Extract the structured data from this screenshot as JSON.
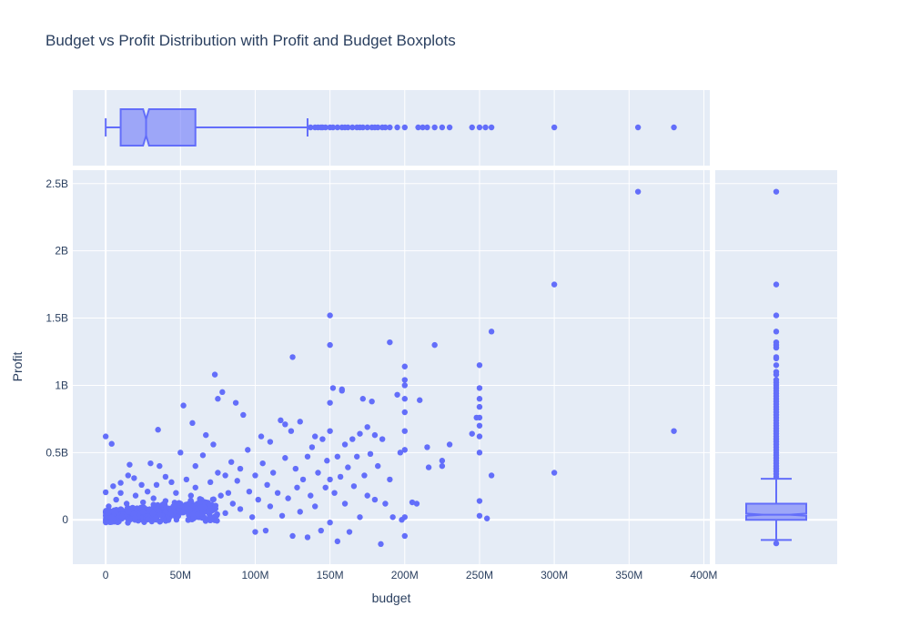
{
  "chart_data": {
    "type": "scatter",
    "title": "Budget vs Profit Distribution with Profit and Budget Boxplots",
    "xlabel": "budget",
    "ylabel": "Profit",
    "xlim": [
      -22000000,
      404000000
    ],
    "ylim": [
      -330000000,
      2600000000
    ],
    "x_ticks": [
      {
        "value": 0,
        "label": "0"
      },
      {
        "value": 50000000,
        "label": "50M"
      },
      {
        "value": 100000000,
        "label": "100M"
      },
      {
        "value": 150000000,
        "label": "150M"
      },
      {
        "value": 200000000,
        "label": "200M"
      },
      {
        "value": 250000000,
        "label": "250M"
      },
      {
        "value": 300000000,
        "label": "300M"
      },
      {
        "value": 350000000,
        "label": "350M"
      },
      {
        "value": 400000000,
        "label": "400M"
      }
    ],
    "y_ticks": [
      {
        "value": 0,
        "label": "0"
      },
      {
        "value": 500000000,
        "label": "0.5B"
      },
      {
        "value": 1000000000,
        "label": "1B"
      },
      {
        "value": 1500000000,
        "label": "1.5B"
      },
      {
        "value": 2000000000,
        "label": "2B"
      },
      {
        "value": 2500000000,
        "label": "2.5B"
      }
    ],
    "grid": true,
    "marker_color": "#636efa",
    "background_color": "#e5ecf6",
    "points": [
      {
        "x": 0,
        "y": 620000000
      },
      {
        "x": 4000000,
        "y": 565000000
      },
      {
        "x": 0,
        "y": 205000000
      },
      {
        "x": 2000000,
        "y": 100000000
      },
      {
        "x": 3000000,
        "y": 30000000
      },
      {
        "x": 5000000,
        "y": 250000000
      },
      {
        "x": 7000000,
        "y": 150000000
      },
      {
        "x": 8000000,
        "y": 60000000
      },
      {
        "x": 10000000,
        "y": 200000000
      },
      {
        "x": 10000000,
        "y": 275000000
      },
      {
        "x": 12000000,
        "y": 20000000
      },
      {
        "x": 14000000,
        "y": 120000000
      },
      {
        "x": 15000000,
        "y": 330000000
      },
      {
        "x": 16000000,
        "y": 410000000
      },
      {
        "x": 18000000,
        "y": 90000000
      },
      {
        "x": 19000000,
        "y": 310000000
      },
      {
        "x": 20000000,
        "y": 180000000
      },
      {
        "x": 22000000,
        "y": 50000000
      },
      {
        "x": 24000000,
        "y": 260000000
      },
      {
        "x": 25000000,
        "y": 130000000
      },
      {
        "x": 27000000,
        "y": 80000000
      },
      {
        "x": 28000000,
        "y": 210000000
      },
      {
        "x": 30000000,
        "y": 420000000
      },
      {
        "x": 30000000,
        "y": 30000000
      },
      {
        "x": 32000000,
        "y": 160000000
      },
      {
        "x": 34000000,
        "y": 260000000
      },
      {
        "x": 35000000,
        "y": 670000000
      },
      {
        "x": 36000000,
        "y": 400000000
      },
      {
        "x": 38000000,
        "y": 60000000
      },
      {
        "x": 40000000,
        "y": 320000000
      },
      {
        "x": 40000000,
        "y": 140000000
      },
      {
        "x": 42000000,
        "y": 20000000
      },
      {
        "x": 44000000,
        "y": 280000000
      },
      {
        "x": 45000000,
        "y": 90000000
      },
      {
        "x": 47000000,
        "y": 200000000
      },
      {
        "x": 50000000,
        "y": 500000000
      },
      {
        "x": 50000000,
        "y": 120000000
      },
      {
        "x": 52000000,
        "y": 850000000
      },
      {
        "x": 54000000,
        "y": 300000000
      },
      {
        "x": 55000000,
        "y": 60000000
      },
      {
        "x": 57000000,
        "y": 180000000
      },
      {
        "x": 58000000,
        "y": 720000000
      },
      {
        "x": 60000000,
        "y": 400000000
      },
      {
        "x": 60000000,
        "y": 240000000
      },
      {
        "x": 62000000,
        "y": 30000000
      },
      {
        "x": 64000000,
        "y": 150000000
      },
      {
        "x": 65000000,
        "y": 480000000
      },
      {
        "x": 67000000,
        "y": 630000000
      },
      {
        "x": 68000000,
        "y": 100000000
      },
      {
        "x": 70000000,
        "y": 280000000
      },
      {
        "x": 72000000,
        "y": 560000000
      },
      {
        "x": 73000000,
        "y": 1080000000
      },
      {
        "x": 75000000,
        "y": 900000000
      },
      {
        "x": 75000000,
        "y": 350000000
      },
      {
        "x": 77000000,
        "y": 180000000
      },
      {
        "x": 78000000,
        "y": 950000000
      },
      {
        "x": 80000000,
        "y": 330000000
      },
      {
        "x": 80000000,
        "y": 50000000
      },
      {
        "x": 82000000,
        "y": 200000000
      },
      {
        "x": 84000000,
        "y": 430000000
      },
      {
        "x": 85000000,
        "y": 120000000
      },
      {
        "x": 87000000,
        "y": 870000000
      },
      {
        "x": 88000000,
        "y": 290000000
      },
      {
        "x": 90000000,
        "y": 380000000
      },
      {
        "x": 90000000,
        "y": 80000000
      },
      {
        "x": 92000000,
        "y": 780000000
      },
      {
        "x": 95000000,
        "y": 520000000
      },
      {
        "x": 96000000,
        "y": 210000000
      },
      {
        "x": 98000000,
        "y": 20000000
      },
      {
        "x": 100000000,
        "y": 330000000
      },
      {
        "x": 100000000,
        "y": -90000000
      },
      {
        "x": 102000000,
        "y": 150000000
      },
      {
        "x": 104000000,
        "y": 620000000
      },
      {
        "x": 105000000,
        "y": 420000000
      },
      {
        "x": 107000000,
        "y": -80000000
      },
      {
        "x": 108000000,
        "y": 260000000
      },
      {
        "x": 110000000,
        "y": 580000000
      },
      {
        "x": 110000000,
        "y": 100000000
      },
      {
        "x": 112000000,
        "y": 350000000
      },
      {
        "x": 115000000,
        "y": 200000000
      },
      {
        "x": 117000000,
        "y": 740000000
      },
      {
        "x": 118000000,
        "y": 30000000
      },
      {
        "x": 120000000,
        "y": 710000000
      },
      {
        "x": 120000000,
        "y": 460000000
      },
      {
        "x": 122000000,
        "y": 160000000
      },
      {
        "x": 124000000,
        "y": 660000000
      },
      {
        "x": 125000000,
        "y": 1210000000
      },
      {
        "x": 125000000,
        "y": -120000000
      },
      {
        "x": 127000000,
        "y": 380000000
      },
      {
        "x": 128000000,
        "y": 240000000
      },
      {
        "x": 130000000,
        "y": 730000000
      },
      {
        "x": 130000000,
        "y": 60000000
      },
      {
        "x": 132000000,
        "y": 300000000
      },
      {
        "x": 135000000,
        "y": 470000000
      },
      {
        "x": 135000000,
        "y": -130000000
      },
      {
        "x": 137000000,
        "y": 180000000
      },
      {
        "x": 138000000,
        "y": 540000000
      },
      {
        "x": 140000000,
        "y": 620000000
      },
      {
        "x": 140000000,
        "y": 100000000
      },
      {
        "x": 142000000,
        "y": 350000000
      },
      {
        "x": 144000000,
        "y": -80000000
      },
      {
        "x": 145000000,
        "y": 600000000
      },
      {
        "x": 147000000,
        "y": 240000000
      },
      {
        "x": 148000000,
        "y": 440000000
      },
      {
        "x": 150000000,
        "y": 1520000000
      },
      {
        "x": 150000000,
        "y": 1300000000
      },
      {
        "x": 150000000,
        "y": 870000000
      },
      {
        "x": 150000000,
        "y": 660000000
      },
      {
        "x": 150000000,
        "y": 300000000
      },
      {
        "x": 150000000,
        "y": -20000000
      },
      {
        "x": 152000000,
        "y": 980000000
      },
      {
        "x": 153000000,
        "y": 200000000
      },
      {
        "x": 155000000,
        "y": 470000000
      },
      {
        "x": 155000000,
        "y": -160000000
      },
      {
        "x": 157000000,
        "y": 320000000
      },
      {
        "x": 158000000,
        "y": 960000000
      },
      {
        "x": 158000000,
        "y": 970000000
      },
      {
        "x": 160000000,
        "y": 560000000
      },
      {
        "x": 160000000,
        "y": 120000000
      },
      {
        "x": 162000000,
        "y": 390000000
      },
      {
        "x": 163000000,
        "y": -90000000
      },
      {
        "x": 165000000,
        "y": 600000000
      },
      {
        "x": 166000000,
        "y": 250000000
      },
      {
        "x": 168000000,
        "y": 470000000
      },
      {
        "x": 170000000,
        "y": 640000000
      },
      {
        "x": 170000000,
        "y": 20000000
      },
      {
        "x": 172000000,
        "y": 900000000
      },
      {
        "x": 173000000,
        "y": 330000000
      },
      {
        "x": 175000000,
        "y": 690000000
      },
      {
        "x": 175000000,
        "y": 180000000
      },
      {
        "x": 177000000,
        "y": 490000000
      },
      {
        "x": 178000000,
        "y": 880000000
      },
      {
        "x": 180000000,
        "y": 630000000
      },
      {
        "x": 180000000,
        "y": 150000000
      },
      {
        "x": 182000000,
        "y": 400000000
      },
      {
        "x": 184000000,
        "y": -180000000
      },
      {
        "x": 185000000,
        "y": 600000000
      },
      {
        "x": 187000000,
        "y": 120000000
      },
      {
        "x": 190000000,
        "y": 1320000000
      },
      {
        "x": 190000000,
        "y": 300000000
      },
      {
        "x": 192000000,
        "y": 20000000
      },
      {
        "x": 195000000,
        "y": 930000000
      },
      {
        "x": 197000000,
        "y": 500000000
      },
      {
        "x": 198000000,
        "y": 0
      },
      {
        "x": 200000000,
        "y": 1140000000
      },
      {
        "x": 200000000,
        "y": 1040000000
      },
      {
        "x": 200000000,
        "y": 1000000000
      },
      {
        "x": 200000000,
        "y": 900000000
      },
      {
        "x": 200000000,
        "y": 800000000
      },
      {
        "x": 200000000,
        "y": 660000000
      },
      {
        "x": 200000000,
        "y": 520000000
      },
      {
        "x": 200000000,
        "y": 20000000
      },
      {
        "x": 200000000,
        "y": -120000000
      },
      {
        "x": 205000000,
        "y": 130000000
      },
      {
        "x": 208000000,
        "y": 120000000
      },
      {
        "x": 210000000,
        "y": 890000000
      },
      {
        "x": 215000000,
        "y": 540000000
      },
      {
        "x": 216000000,
        "y": 390000000
      },
      {
        "x": 220000000,
        "y": 1300000000
      },
      {
        "x": 225000000,
        "y": 440000000
      },
      {
        "x": 225000000,
        "y": 400000000
      },
      {
        "x": 230000000,
        "y": 560000000
      },
      {
        "x": 245000000,
        "y": 640000000
      },
      {
        "x": 248000000,
        "y": 760000000
      },
      {
        "x": 250000000,
        "y": 1150000000
      },
      {
        "x": 250000000,
        "y": 980000000
      },
      {
        "x": 250000000,
        "y": 900000000
      },
      {
        "x": 250000000,
        "y": 840000000
      },
      {
        "x": 250000000,
        "y": 760000000
      },
      {
        "x": 250000000,
        "y": 700000000
      },
      {
        "x": 250000000,
        "y": 620000000
      },
      {
        "x": 250000000,
        "y": 500000000
      },
      {
        "x": 250000000,
        "y": 140000000
      },
      {
        "x": 250000000,
        "y": 30000000
      },
      {
        "x": 255000000,
        "y": 10000000
      },
      {
        "x": 258000000,
        "y": 1400000000
      },
      {
        "x": 258000000,
        "y": 330000000
      },
      {
        "x": 300000000,
        "y": 1750000000
      },
      {
        "x": 300000000,
        "y": 350000000
      },
      {
        "x": 356000000,
        "y": 2440000000
      },
      {
        "x": 380000000,
        "y": 660000000
      }
    ],
    "budget_boxplot": {
      "min": 0,
      "q1": 10000000,
      "median": 27000000,
      "q3": 60000000,
      "upper_fence": 135000000,
      "notch_low": 25000000,
      "notch_high": 29000000,
      "outliers": [
        137000000,
        140000000,
        142000000,
        144000000,
        145000000,
        147000000,
        150000000,
        152000000,
        155000000,
        158000000,
        160000000,
        162000000,
        165000000,
        168000000,
        170000000,
        172000000,
        175000000,
        178000000,
        180000000,
        182000000,
        185000000,
        187000000,
        190000000,
        195000000,
        200000000,
        209000000,
        212000000,
        215000000,
        220000000,
        225000000,
        230000000,
        245000000,
        250000000,
        254000000,
        258000000,
        300000000,
        356000000,
        380000000
      ]
    },
    "profit_boxplot": {
      "min": -150000000,
      "q1": 0,
      "median": 38000000,
      "q3": 120000000,
      "upper_fence": 305000000,
      "notch_low": 30000000,
      "notch_high": 46000000,
      "outliers": [
        320000000,
        340000000,
        360000000,
        380000000,
        400000000,
        420000000,
        440000000,
        460000000,
        480000000,
        500000000,
        520000000,
        540000000,
        560000000,
        580000000,
        600000000,
        620000000,
        640000000,
        660000000,
        680000000,
        700000000,
        720000000,
        740000000,
        760000000,
        780000000,
        800000000,
        820000000,
        840000000,
        860000000,
        880000000,
        900000000,
        920000000,
        940000000,
        960000000,
        980000000,
        1000000000,
        1020000000,
        1040000000,
        1080000000,
        1100000000,
        1150000000,
        1200000000,
        1210000000,
        1280000000,
        1300000000,
        1320000000,
        1400000000,
        1520000000,
        1750000000,
        2440000000,
        -175000000
      ]
    }
  }
}
